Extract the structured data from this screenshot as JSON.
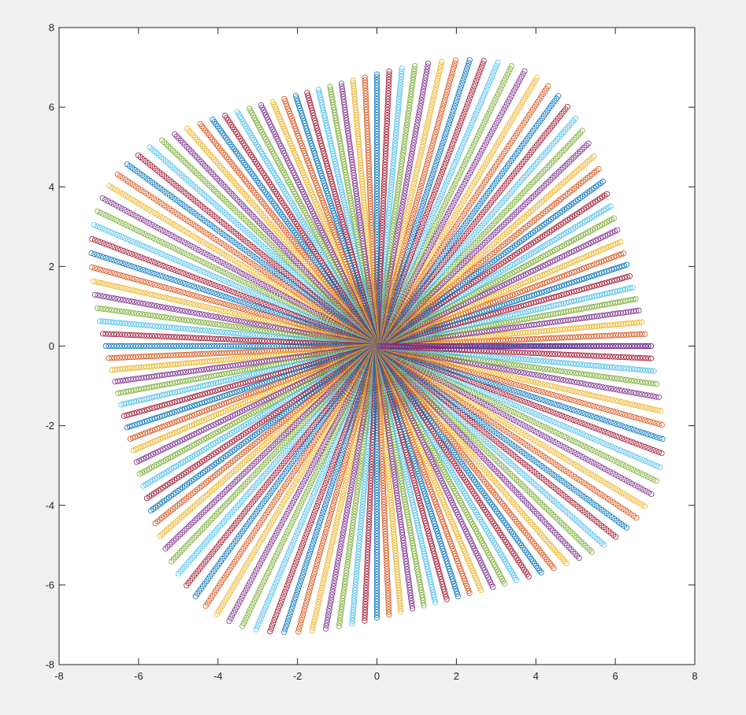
{
  "chart_data": {
    "type": "scatter",
    "title": "",
    "xlabel": "",
    "ylabel": "",
    "xlim": [
      -8,
      8
    ],
    "ylim": [
      -8,
      8
    ],
    "xticks": [
      -8,
      -6,
      -4,
      -2,
      0,
      2,
      4,
      6,
      8
    ],
    "yticks": [
      -8,
      -6,
      -4,
      -2,
      0,
      2,
      4,
      6,
      8
    ],
    "xtick_labels": [
      "-8",
      "-6",
      "-4",
      "-2",
      "0",
      "2",
      "4",
      "6",
      "8"
    ],
    "ytick_labels": [
      "-8",
      "-6",
      "-4",
      "-2",
      "0",
      "2",
      "4",
      "6",
      "8"
    ],
    "grid": false,
    "legend": "none",
    "marker": "circle-open",
    "description_of_data": "",
    "pattern": {
      "ray_count": 140,
      "points_per_ray": 100,
      "envelope": "rotated rounded square",
      "envelope_rotation_deg": 15,
      "envelope_half_width": 6.6,
      "envelope_superellipse_exponent": 4
    },
    "series_colors": [
      "#0072bd",
      "#d95319",
      "#edb120",
      "#7e2f8e",
      "#77ac30",
      "#4dbeee",
      "#a2142f"
    ],
    "highlight_ray": {
      "angle_deg": 0,
      "length": 6.9,
      "color": "#7e2f8e"
    }
  }
}
